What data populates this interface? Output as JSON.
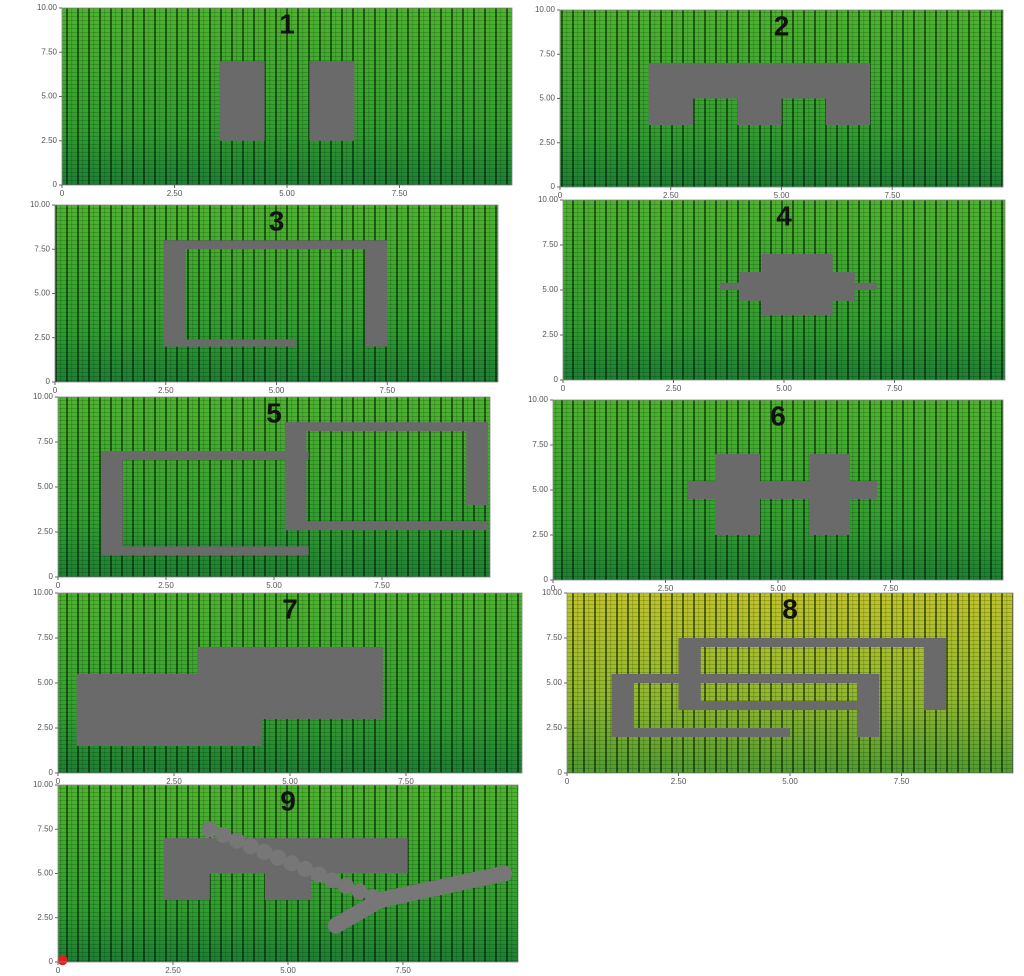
{
  "panels": [
    {
      "label": "1"
    },
    {
      "label": "2"
    },
    {
      "label": "3"
    },
    {
      "label": "4"
    },
    {
      "label": "5"
    },
    {
      "label": "6"
    },
    {
      "label": "7"
    },
    {
      "label": "8"
    },
    {
      "label": "9"
    }
  ],
  "axis": {
    "xlim": [
      0,
      10
    ],
    "ylim": [
      0,
      10
    ],
    "yticks": [
      0,
      {
        "value": 2.5,
        "label": "2.50"
      },
      {
        "value": 5,
        "label": "5.00"
      },
      {
        "value": 7.5,
        "label": "7.50"
      },
      {
        "value": 10,
        "label": "10.00"
      }
    ],
    "xticks": [
      0,
      {
        "value": 2.5,
        "label": "2.50"
      },
      {
        "value": 5,
        "label": "5.00"
      },
      {
        "value": 7.5,
        "label": "7.50"
      }
    ]
  }
}
